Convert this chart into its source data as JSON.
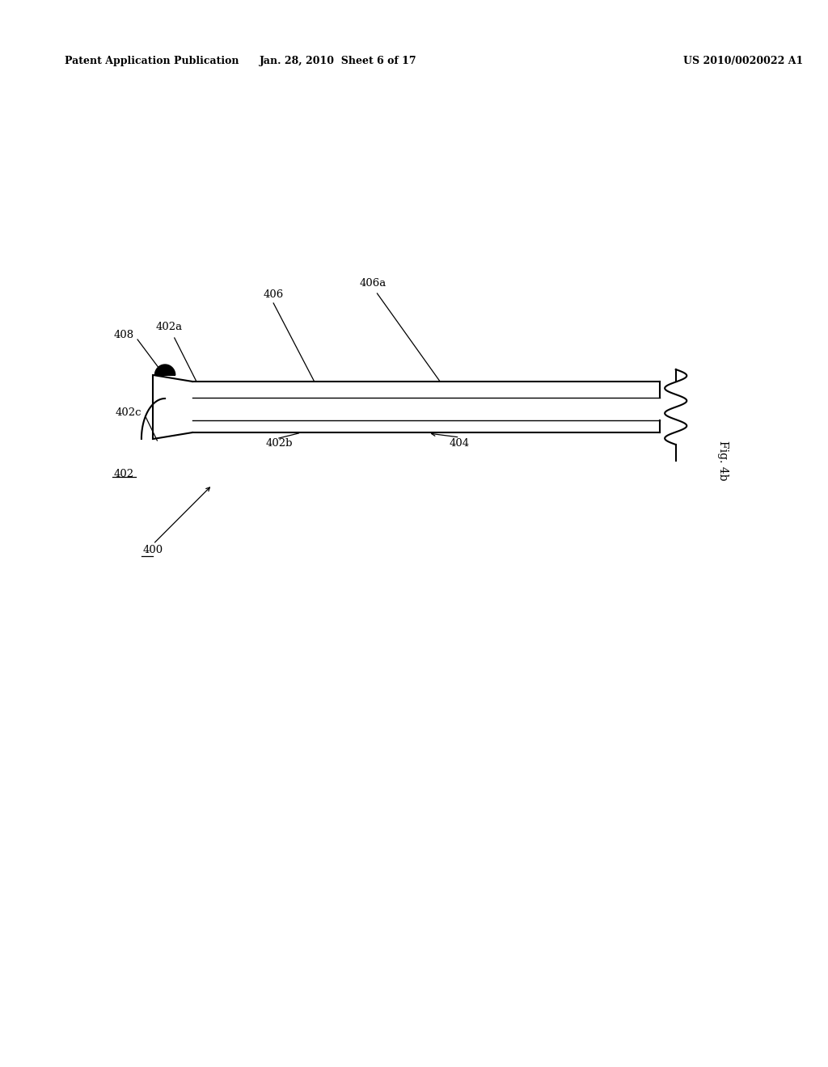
{
  "bg_color": "#ffffff",
  "header_left": "Patent Application Publication",
  "header_center": "Jan. 28, 2010  Sheet 6 of 17",
  "header_right": "US 2010/0020022 A1",
  "fig_label": "Fig. 4b"
}
